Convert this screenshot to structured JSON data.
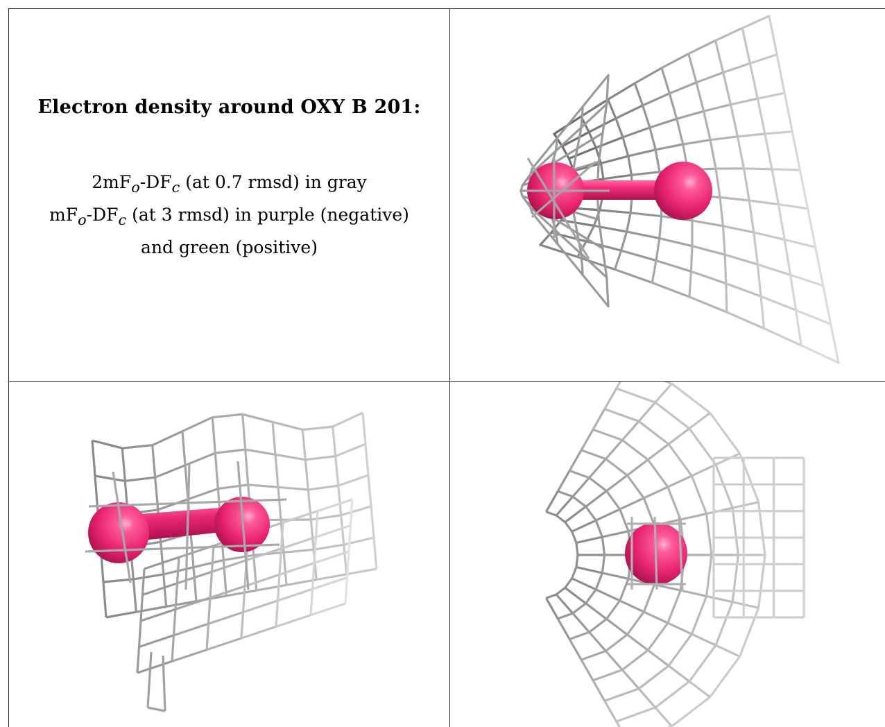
{
  "caption": {
    "title": "Electron density around OXY B 201:",
    "line1": "2mFₒ-DF꜀ (at 0.7 rmsd) in gray",
    "line1_parts": {
      "a": "2mF",
      "sub1": "o",
      "b": "-DF",
      "sub2": "c",
      "c": " (at 0.7 rmsd) in gray"
    },
    "line2_parts": {
      "a": "mF",
      "sub1": "o",
      "b": "-DF",
      "sub2": "c",
      "c": " (at 3 rmsd) in purple (negative)"
    },
    "line3": "and green (positive)"
  },
  "colors": {
    "mesh": "#b9b9b9",
    "mesh_dark": "#6e6e6e",
    "atom": "#e8236f",
    "atom_highlight": "#ff8fbd",
    "atom_shadow": "#a3104a",
    "border": "#222222"
  },
  "views": [
    {
      "name": "view-side",
      "atoms": 2
    },
    {
      "name": "view-oblique",
      "atoms": 2
    },
    {
      "name": "view-end-on",
      "atoms": 1
    }
  ]
}
